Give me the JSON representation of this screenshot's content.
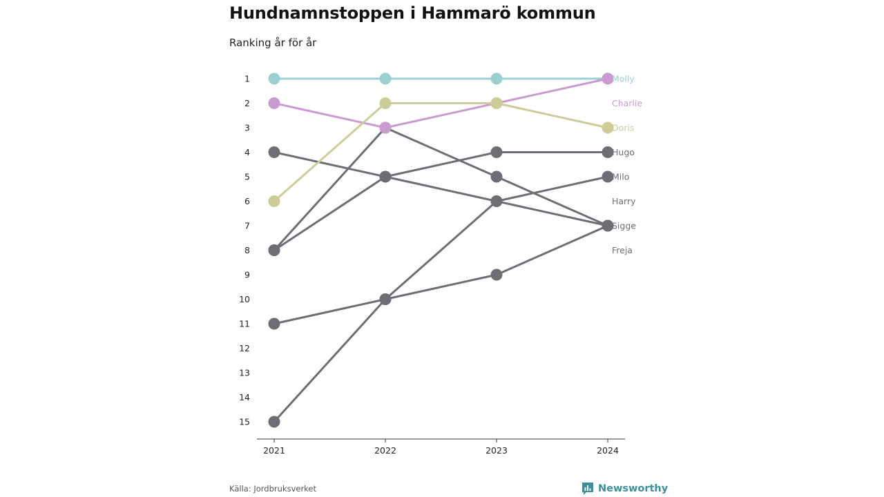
{
  "page": {
    "title": "Hundnamnstoppen i Hammarö kommun",
    "subtitle": "Ranking år för år",
    "source": "Källa: Jordbruksverket",
    "brand": "Newsworthy",
    "brand_icon": "newsworthy-logo-icon"
  },
  "chart_data": {
    "type": "line",
    "title": "Hundnamnstoppen i Hammarö kommun",
    "subtitle": "Ranking år för år",
    "x": [
      "2021",
      "2022",
      "2023",
      "2024"
    ],
    "y_ticks": [
      "1",
      "2",
      "3",
      "4",
      "5",
      "6",
      "7",
      "8",
      "9",
      "10",
      "11",
      "12",
      "13",
      "14",
      "15"
    ],
    "ylim": [
      1,
      15
    ],
    "y_inverted": true,
    "grid": false,
    "legend": "end-labels-right",
    "series": [
      {
        "name": "Molly",
        "color": "#9ccfd0",
        "values": [
          1,
          1,
          1,
          1
        ]
      },
      {
        "name": "Charlie",
        "color": "#c99bd1",
        "values": [
          2,
          3,
          2,
          1
        ]
      },
      {
        "name": "Doris",
        "color": "#cccc99",
        "values": [
          6,
          2,
          2,
          3
        ]
      },
      {
        "name": "Hugo",
        "color": "#6e6d74",
        "values": [
          4,
          5,
          6,
          7
        ]
      },
      {
        "name": "Milo",
        "color": "#6e6d74",
        "values": [
          8,
          3,
          5,
          7
        ]
      },
      {
        "name": "Harry",
        "color": "#6e6d74",
        "values": [
          8,
          5,
          4,
          4
        ]
      },
      {
        "name": "Sigge",
        "color": "#6e6d74",
        "values": [
          15,
          10,
          6,
          5
        ]
      },
      {
        "name": "Freja",
        "color": "#6e6d74",
        "values": [
          11,
          10,
          9,
          7
        ]
      }
    ],
    "end_labels": [
      {
        "text": "Molly",
        "color": "#9ccfd0",
        "rank": 1
      },
      {
        "text": "Charlie",
        "color": "#c99bd1",
        "rank": 2
      },
      {
        "text": "Doris",
        "color": "#cccc99",
        "rank": 3
      },
      {
        "text": "Hugo",
        "color": "#6e6d74",
        "rank": 4
      },
      {
        "text": "Milo",
        "color": "#6e6d74",
        "rank": 5
      },
      {
        "text": "Harry",
        "color": "#6e6d74",
        "rank": 6
      },
      {
        "text": "Sigge",
        "color": "#6e6d74",
        "rank": 7
      },
      {
        "text": "Freja",
        "color": "#6e6d74",
        "rank": 8
      }
    ]
  }
}
